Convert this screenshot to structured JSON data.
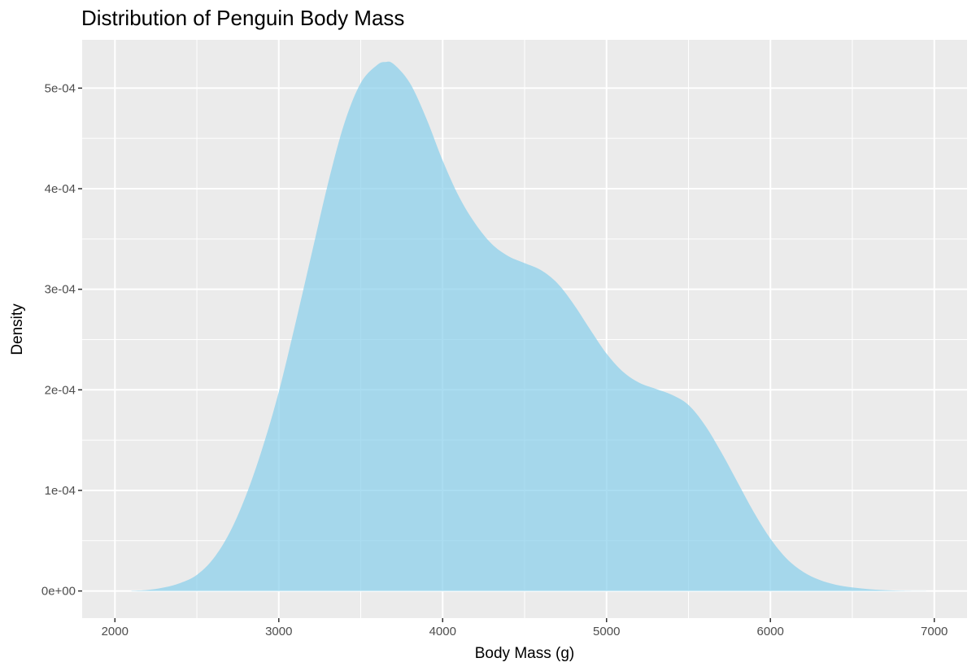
{
  "chart_data": {
    "type": "area",
    "title": "Distribution of Penguin Body Mass",
    "xlabel": "Body Mass (g)",
    "ylabel": "Density",
    "xlim": [
      1800,
      7200
    ],
    "ylim": [
      -2.7e-05,
      0.000548
    ],
    "x_ticks": [
      2000,
      3000,
      4000,
      5000,
      6000,
      7000
    ],
    "x_tick_labels": [
      "2000",
      "3000",
      "4000",
      "5000",
      "6000",
      "7000"
    ],
    "y_ticks": [
      0,
      0.0001,
      0.0002,
      0.0003,
      0.0004,
      0.0005
    ],
    "y_tick_labels": [
      "0e+00",
      "1e-04",
      "2e-04",
      "3e-04",
      "4e-04",
      "5e-04"
    ],
    "grid": true,
    "legend": "none",
    "fill_color": "#87CEEB",
    "panel_background": "#EBEBEB",
    "x": [
      2100,
      2200,
      2300,
      2400,
      2500,
      2600,
      2700,
      2800,
      2900,
      3000,
      3100,
      3200,
      3300,
      3400,
      3500,
      3600,
      3650,
      3700,
      3800,
      3900,
      4000,
      4100,
      4200,
      4300,
      4400,
      4500,
      4600,
      4700,
      4800,
      4900,
      5000,
      5100,
      5200,
      5300,
      5400,
      5500,
      5600,
      5700,
      5800,
      5900,
      6000,
      6100,
      6200,
      6300,
      6400,
      6500,
      6600,
      6700,
      6800,
      6900,
      6950
    ],
    "y": [
      2e-07,
      1e-06,
      3.5e-06,
      8e-06,
      1.6e-05,
      3.2e-05,
      5.8e-05,
      9.5e-05,
      0.000142,
      0.000198,
      0.000265,
      0.000335,
      0.000405,
      0.000465,
      0.000505,
      0.000523,
      0.000526,
      0.000524,
      0.000505,
      0.00047,
      0.000428,
      0.000392,
      0.000365,
      0.000345,
      0.000333,
      0.000326,
      0.000319,
      0.000306,
      0.000285,
      0.00026,
      0.000236,
      0.000218,
      0.000207,
      0.000201,
      0.000195,
      0.000185,
      0.000165,
      0.000138,
      0.000108,
      7.8e-05,
      5.2e-05,
      3.2e-05,
      1.9e-05,
      1.1e-05,
      6.2e-06,
      3.5e-06,
      1.8e-06,
      8e-07,
      3e-07,
      1e-07,
      5e-08
    ]
  }
}
